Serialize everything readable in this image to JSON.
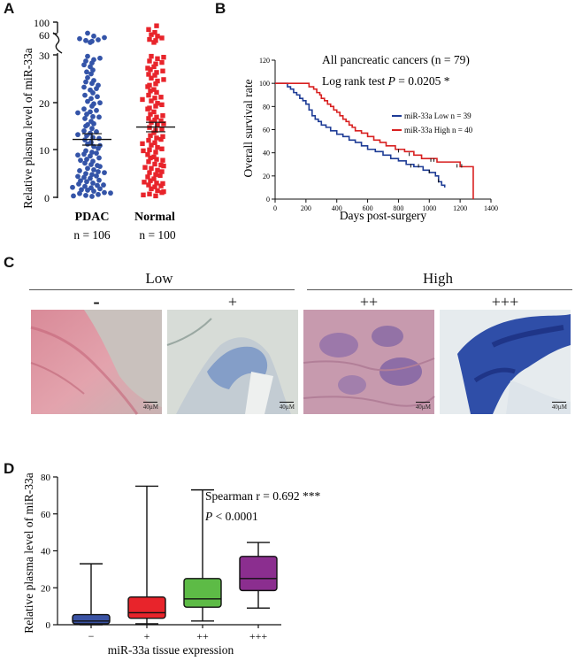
{
  "panel_labels": {
    "a": "A",
    "b": "B",
    "c": "C",
    "d": "D"
  },
  "panelA": {
    "ylabel": "Relative plasma level of  miR-33a",
    "groups": [
      {
        "name": "PDAC",
        "n": "n = 106",
        "mean": 12.2,
        "sem": 1.2
      },
      {
        "name": "Normal",
        "n": "n = 100",
        "mean": 14.8,
        "sem": 1.0
      }
    ],
    "colors": {
      "pdac": "#3454a8",
      "normal": "#e8242b"
    }
  },
  "panelB": {
    "annotation1": "All pancreatic cancers (n = 79)",
    "annotation2_prefix": "Log rank test  ",
    "annotation2_p": "P",
    "annotation2_value": " = 0.0205 *",
    "legend_low": "miR-33a Low n = 39",
    "legend_high": "miR-33a High n = 40"
  },
  "panelC": {
    "group_low": "Low",
    "group_high": "High",
    "grades": [
      "-",
      "+",
      "++",
      "+++"
    ],
    "scale_label": "40µM"
  },
  "panelD": {
    "annotation1": "Spearman r =  0.692 ***",
    "annotation2_p": "P",
    "annotation2_value": " < 0.0001"
  },
  "chart_data": [
    {
      "type": "scatter",
      "title": "",
      "xlabel": "",
      "ylabel": "Relative plasma level of  miR-33a",
      "categories": [
        "PDAC",
        "Normal"
      ],
      "y_ticks": [
        "0",
        "10",
        "20",
        "30",
        "60",
        "100"
      ],
      "ylim_lower": [
        0,
        30
      ],
      "ylim_upper": [
        40,
        100
      ],
      "series": [
        {
          "name": "PDAC",
          "n": 106,
          "mean": 12.2,
          "sem": 1.2,
          "values": [
            0.2,
            0.4,
            0.6,
            0.8,
            1.0,
            1.3,
            1.5,
            1.8,
            2.0,
            2.3,
            2.5,
            2.8,
            3.0,
            3.3,
            3.6,
            4.0,
            4.2,
            4.5,
            4.8,
            5.0,
            5.4,
            5.8,
            6.1,
            6.5,
            6.9,
            7.2,
            7.6,
            8.0,
            8.3,
            8.7,
            9.1,
            9.5,
            9.8,
            10.3,
            10.7,
            11.2,
            11.6,
            12.1,
            12.6,
            13.0,
            13.5,
            14.0,
            14.5,
            15.0,
            15.5,
            16.0,
            16.6,
            17.0,
            17.5,
            18.0,
            18.6,
            19.2,
            19.7,
            20.2,
            20.8,
            21.5,
            22.0,
            22.6,
            23.2,
            24.0,
            24.6,
            25.2,
            26.0,
            26.8,
            27.5,
            28.3,
            29.0,
            29.7,
            0.3,
            0.9,
            1.6,
            2.6,
            3.5,
            4.4,
            5.6,
            6.7,
            7.8,
            9.3,
            10.9,
            12.4,
            13.8,
            15.3,
            16.9,
            18.3,
            19.9,
            21.2,
            22.9,
            24.3,
            26.4,
            27.9,
            29.3,
            2.1,
            5.2,
            8.9,
            13.2,
            17.8,
            23.6,
            28.7,
            45,
            48,
            50,
            52,
            55,
            58,
            62,
            70
          ]
        },
        {
          "name": "Normal",
          "n": 100,
          "mean": 14.8,
          "sem": 1.0,
          "values": [
            0.3,
            0.7,
            1.0,
            1.4,
            1.8,
            2.2,
            2.6,
            3.0,
            3.5,
            3.9,
            4.3,
            4.8,
            5.2,
            5.7,
            6.1,
            6.6,
            7.0,
            7.5,
            8.0,
            8.5,
            9.0,
            9.5,
            10.0,
            10.5,
            11.0,
            11.5,
            12.0,
            12.5,
            13.0,
            13.6,
            14.1,
            14.7,
            15.2,
            15.8,
            16.3,
            16.9,
            17.5,
            18.0,
            18.6,
            19.2,
            19.8,
            20.3,
            20.9,
            21.5,
            22.1,
            22.7,
            23.3,
            23.9,
            24.5,
            25.1,
            25.7,
            26.3,
            26.9,
            27.5,
            28.1,
            28.7,
            29.2,
            29.7,
            1.2,
            2.9,
            4.6,
            6.3,
            8.3,
            10.2,
            12.2,
            14.4,
            16.6,
            18.8,
            21.1,
            23.6,
            25.9,
            28.4,
            0.5,
            3.2,
            5.4,
            7.8,
            9.8,
            12.8,
            15.5,
            17.2,
            19.5,
            22.4,
            24.8,
            27.2,
            29.5,
            2.4,
            6.8,
            11.3,
            16.1,
            20.6,
            26.6,
            45,
            50,
            53,
            57,
            62,
            66,
            72,
            80,
            90
          ]
        }
      ]
    },
    {
      "type": "line",
      "subtype": "kaplan-meier",
      "xlabel": "Days post-surgery",
      "ylabel": "Overall survival rate",
      "xlim": [
        0,
        1400
      ],
      "ylim": [
        0,
        120
      ],
      "x_ticks": [
        0,
        200,
        400,
        600,
        800,
        1000,
        1200,
        1400
      ],
      "y_ticks": [
        0,
        20,
        40,
        60,
        80,
        100,
        120
      ],
      "series": [
        {
          "name": "miR-33a Low n = 39",
          "color": "#1e3c96",
          "steps": [
            [
              0,
              100
            ],
            [
              60,
              100
            ],
            [
              80,
              97
            ],
            [
              100,
              95
            ],
            [
              120,
              92
            ],
            [
              140,
              90
            ],
            [
              160,
              87
            ],
            [
              180,
              85
            ],
            [
              200,
              82
            ],
            [
              220,
              77
            ],
            [
              240,
              72
            ],
            [
              260,
              69
            ],
            [
              280,
              67
            ],
            [
              300,
              64
            ],
            [
              330,
              62
            ],
            [
              360,
              59
            ],
            [
              400,
              56
            ],
            [
              440,
              54
            ],
            [
              480,
              51
            ],
            [
              520,
              49
            ],
            [
              560,
              46
            ],
            [
              600,
              43
            ],
            [
              650,
              41
            ],
            [
              700,
              38
            ],
            [
              750,
              35
            ],
            [
              800,
              33
            ],
            [
              850,
              30
            ],
            [
              900,
              28
            ],
            [
              960,
              25
            ],
            [
              1000,
              23
            ],
            [
              1040,
              20
            ],
            [
              1060,
              15
            ],
            [
              1080,
              12
            ],
            [
              1100,
              10
            ]
          ],
          "censored": [
            [
              880,
              28
            ],
            [
              930,
              28
            ],
            [
              1000,
              23
            ],
            [
              1060,
              15
            ]
          ]
        },
        {
          "name": "miR-33a High n = 40",
          "color": "#d82020",
          "steps": [
            [
              0,
              100
            ],
            [
              200,
              100
            ],
            [
              220,
              97
            ],
            [
              250,
              95
            ],
            [
              270,
              92
            ],
            [
              290,
              90
            ],
            [
              300,
              87
            ],
            [
              320,
              85
            ],
            [
              340,
              82
            ],
            [
              360,
              80
            ],
            [
              380,
              77
            ],
            [
              400,
              75
            ],
            [
              420,
              72
            ],
            [
              440,
              69
            ],
            [
              460,
              67
            ],
            [
              480,
              64
            ],
            [
              500,
              62
            ],
            [
              520,
              59
            ],
            [
              560,
              57
            ],
            [
              600,
              54
            ],
            [
              640,
              51
            ],
            [
              680,
              49
            ],
            [
              720,
              46
            ],
            [
              780,
              43
            ],
            [
              840,
              41
            ],
            [
              900,
              38
            ],
            [
              950,
              35
            ],
            [
              1050,
              32
            ],
            [
              1200,
              28
            ],
            [
              1280,
              28
            ],
            [
              1285,
              0
            ]
          ],
          "censored": [
            [
              800,
              41
            ],
            [
              870,
              38
            ],
            [
              1010,
              33
            ],
            [
              1030,
              33
            ],
            [
              1180,
              28
            ],
            [
              1210,
              28
            ]
          ]
        }
      ]
    },
    {
      "type": "box",
      "title": "",
      "xlabel": "miR-33a tissue expression",
      "ylabel": "Relative plasma level of  miR-33a",
      "categories": [
        "−",
        "+",
        "++",
        "+++"
      ],
      "ylim": [
        0,
        80
      ],
      "y_ticks": [
        0,
        20,
        40,
        60,
        80
      ],
      "series": [
        {
          "name": "−",
          "color": "#3a53a4",
          "min": 0,
          "q1": 0.5,
          "median": 2,
          "q3": 5.5,
          "max": 33
        },
        {
          "name": "+",
          "color": "#e8242b",
          "min": 0.5,
          "q1": 3.5,
          "median": 6.5,
          "q3": 15,
          "max": 75
        },
        {
          "name": "++",
          "color": "#5dbb46",
          "min": 2,
          "q1": 9.5,
          "median": 14,
          "q3": 25,
          "max": 73
        },
        {
          "name": "+++",
          "color": "#8b2e8f",
          "min": 9,
          "q1": 18.5,
          "median": 25,
          "q3": 37,
          "max": 44.5
        }
      ]
    }
  ]
}
